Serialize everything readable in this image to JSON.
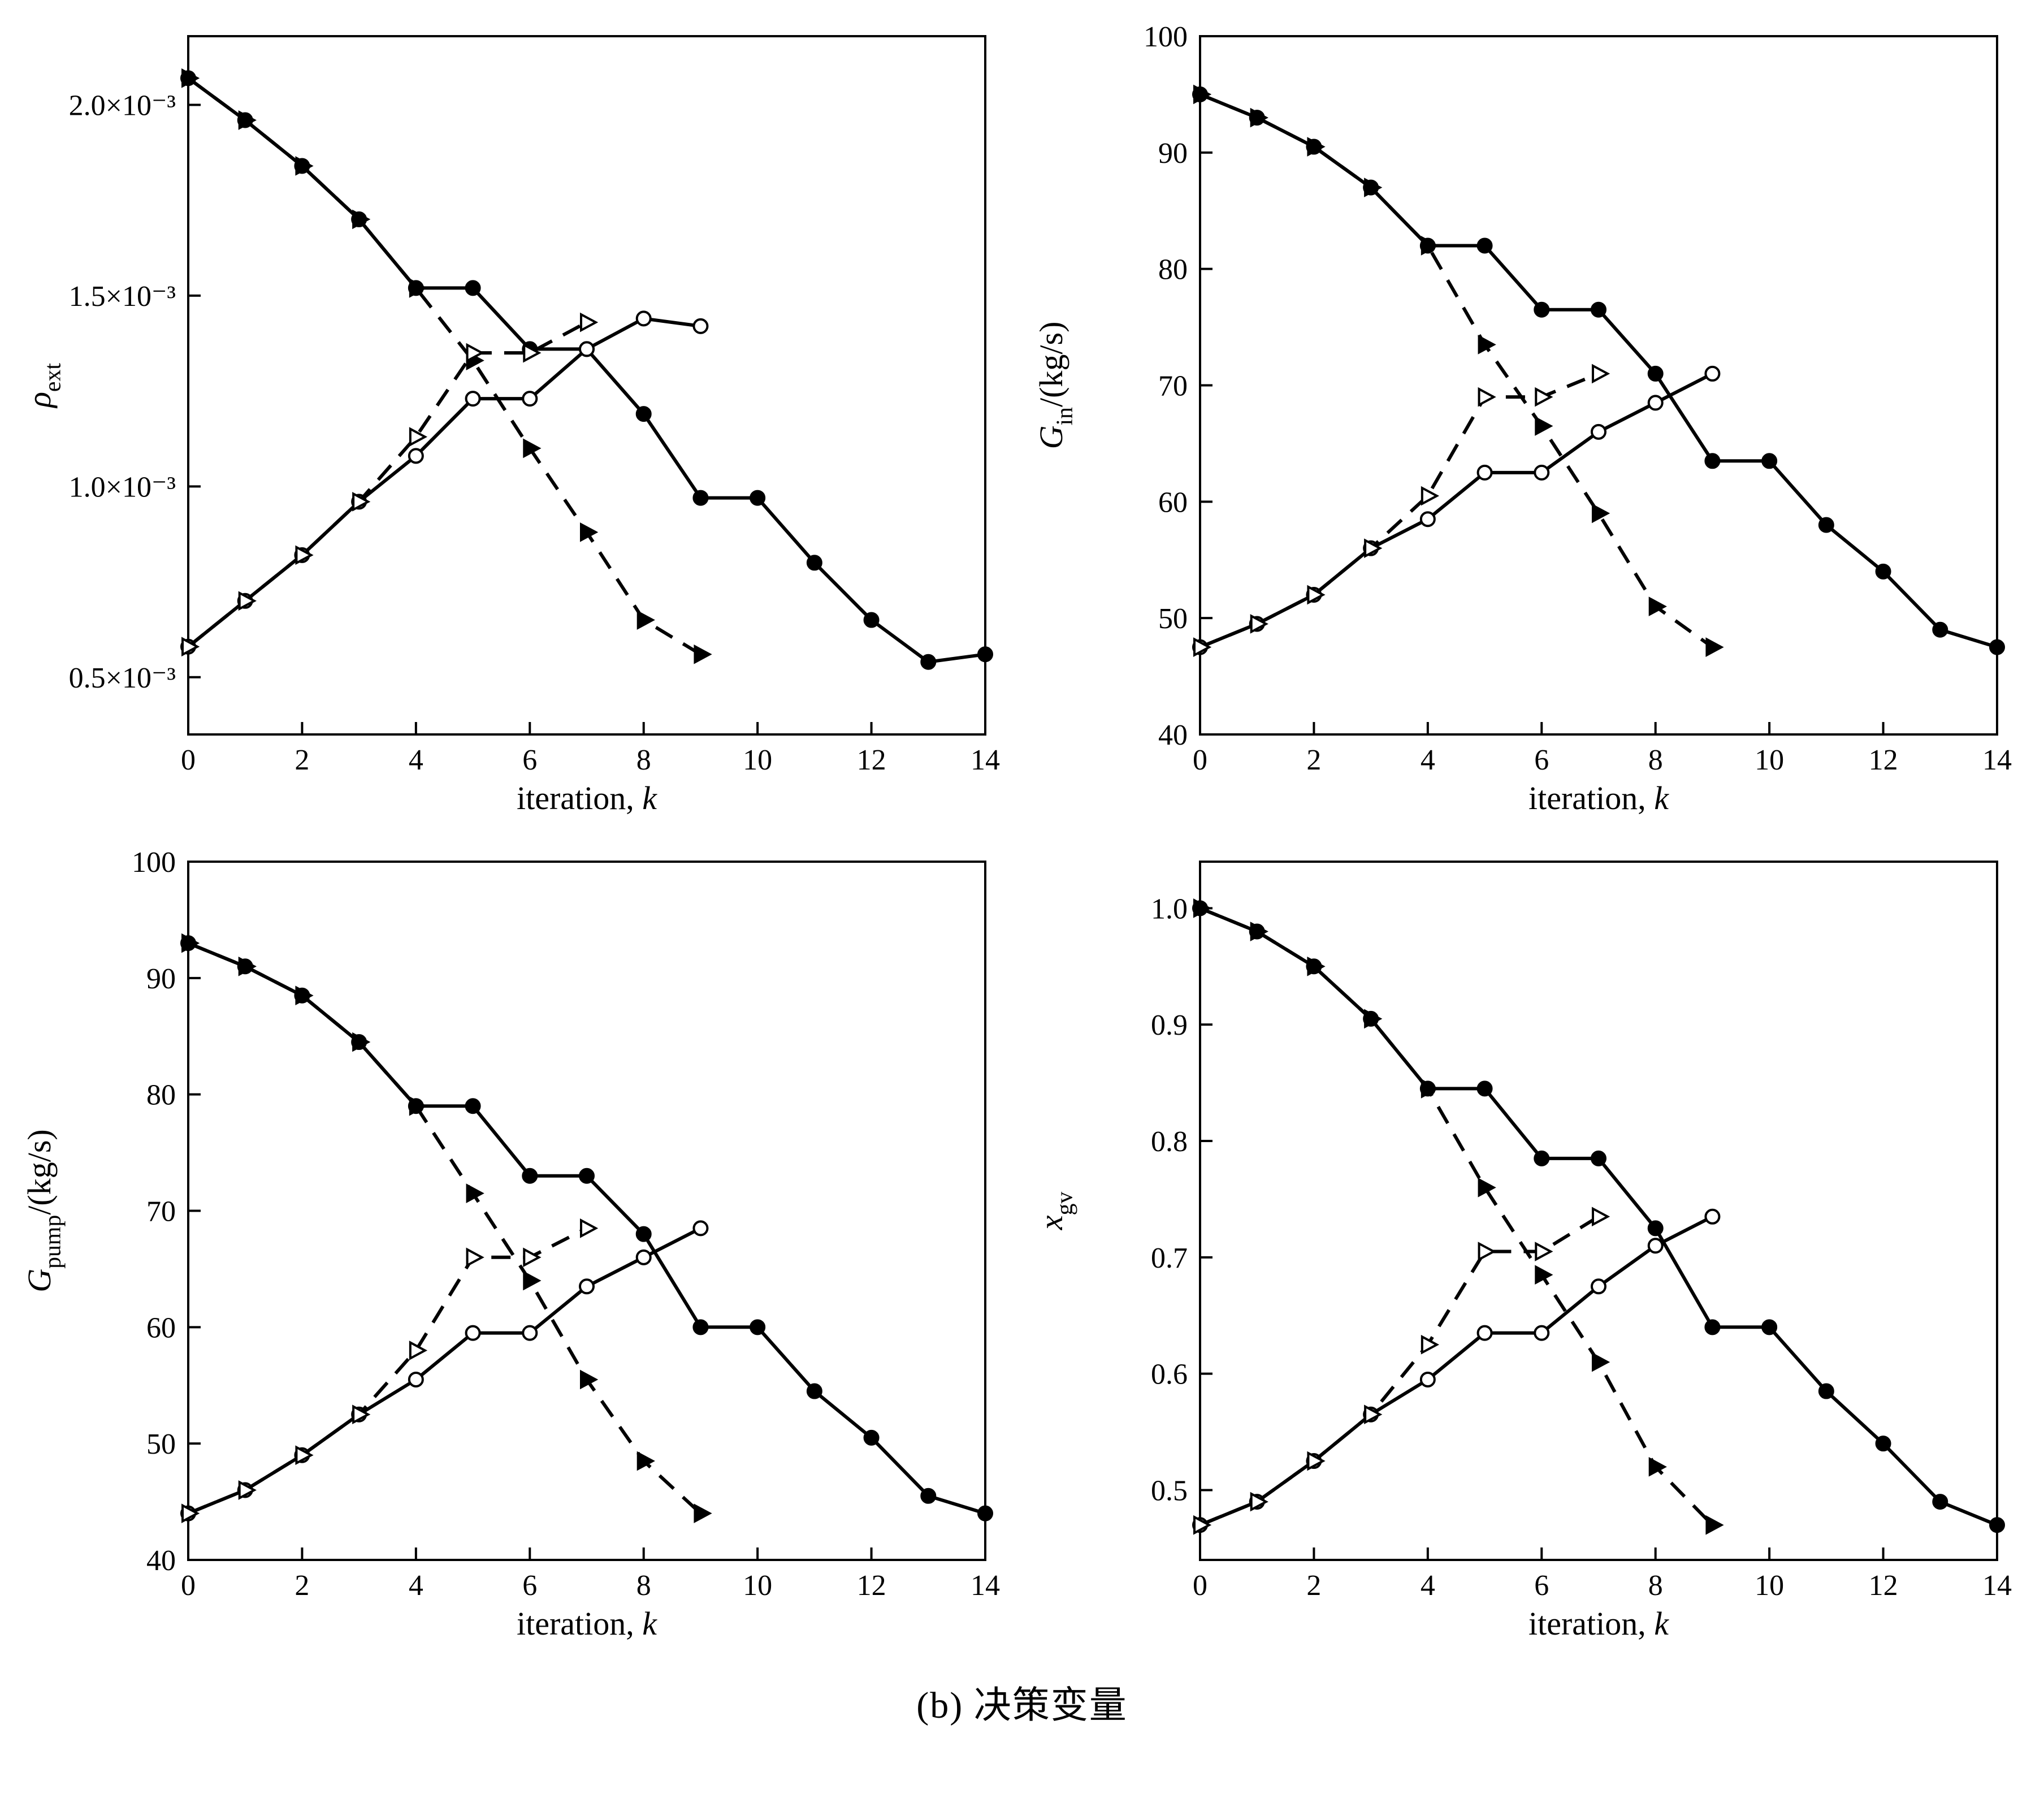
{
  "caption": "(b) 决策变量",
  "chart_data": [
    {
      "type": "line",
      "title": "",
      "name": "rho-ext",
      "xlabel": "iteration, k",
      "ylabel": "rho_ext",
      "xlabel_parts": [
        {
          "text": "iteration, "
        },
        {
          "text": "k",
          "italic": true
        }
      ],
      "ylabel_parts": [
        {
          "text": "ρ",
          "italic": true
        },
        {
          "text": "ext",
          "sub": true
        }
      ],
      "xlim": [
        0,
        14
      ],
      "ylim": [
        0.35,
        2.18
      ],
      "y_unit": "×10⁻³",
      "grid": false,
      "legend": "none",
      "xticks": [
        0,
        2,
        4,
        6,
        8,
        10,
        12,
        14
      ],
      "yticks": [
        0.5,
        1.0,
        1.5,
        2.0
      ],
      "ytick_labels": [
        "0.5×10⁻³",
        "1.0×10⁻³",
        "1.5×10⁻³",
        "2.0×10⁻³"
      ],
      "series": [
        {
          "name": "filled-circle-solid",
          "marker": "circle-filled",
          "dash": false,
          "x": [
            0,
            1,
            2,
            3,
            4,
            5,
            6,
            7,
            8,
            9,
            10,
            11,
            12,
            13,
            14
          ],
          "y": [
            2.07,
            1.96,
            1.84,
            1.7,
            1.52,
            1.52,
            1.36,
            1.36,
            1.19,
            0.97,
            0.97,
            0.8,
            0.65,
            0.54,
            0.56
          ]
        },
        {
          "name": "open-circle-solid",
          "marker": "circle-open",
          "dash": false,
          "x": [
            0,
            1,
            2,
            3,
            4,
            5,
            6,
            7,
            8,
            9
          ],
          "y": [
            0.58,
            0.7,
            0.82,
            0.96,
            1.08,
            1.23,
            1.23,
            1.36,
            1.44,
            1.42
          ]
        },
        {
          "name": "filled-triangle-dashed",
          "marker": "triangle-filled",
          "dash": true,
          "x": [
            0,
            1,
            2,
            3,
            4,
            5,
            6,
            7,
            8,
            9
          ],
          "y": [
            2.07,
            1.96,
            1.84,
            1.7,
            1.52,
            1.33,
            1.1,
            0.88,
            0.65,
            0.56
          ]
        },
        {
          "name": "open-triangle-dashed",
          "marker": "triangle-open",
          "dash": true,
          "x": [
            0,
            1,
            2,
            3,
            4,
            5,
            6,
            7
          ],
          "y": [
            0.58,
            0.7,
            0.82,
            0.96,
            1.13,
            1.35,
            1.35,
            1.43
          ]
        }
      ]
    },
    {
      "type": "line",
      "title": "",
      "name": "g-in",
      "xlabel": "iteration, k",
      "ylabel": "G_in/(kg/s)",
      "xlabel_parts": [
        {
          "text": "iteration, "
        },
        {
          "text": "k",
          "italic": true
        }
      ],
      "ylabel_parts": [
        {
          "text": "G",
          "italic": true
        },
        {
          "text": "in",
          "sub": true
        },
        {
          "text": "/(kg/s)"
        }
      ],
      "xlim": [
        0,
        14
      ],
      "ylim": [
        40,
        100
      ],
      "grid": false,
      "legend": "none",
      "xticks": [
        0,
        2,
        4,
        6,
        8,
        10,
        12,
        14
      ],
      "yticks": [
        40,
        50,
        60,
        70,
        80,
        90,
        100
      ],
      "ytick_labels": [
        "40",
        "50",
        "60",
        "70",
        "80",
        "90",
        "100"
      ],
      "series": [
        {
          "name": "filled-circle-solid",
          "marker": "circle-filled",
          "dash": false,
          "x": [
            0,
            1,
            2,
            3,
            4,
            5,
            6,
            7,
            8,
            9,
            10,
            11,
            12,
            13,
            14
          ],
          "y": [
            95,
            93,
            90.5,
            87,
            82,
            82,
            76.5,
            76.5,
            71,
            63.5,
            63.5,
            58,
            54,
            49,
            47.5
          ]
        },
        {
          "name": "open-circle-solid",
          "marker": "circle-open",
          "dash": false,
          "x": [
            0,
            1,
            2,
            3,
            4,
            5,
            6,
            7,
            8,
            9
          ],
          "y": [
            47.5,
            49.5,
            52,
            56,
            58.5,
            62.5,
            62.5,
            66,
            68.5,
            71
          ]
        },
        {
          "name": "filled-triangle-dashed",
          "marker": "triangle-filled",
          "dash": true,
          "x": [
            0,
            1,
            2,
            3,
            4,
            5,
            6,
            7,
            8,
            9
          ],
          "y": [
            95,
            93,
            90.5,
            87,
            82,
            73.5,
            66.5,
            59,
            51,
            47.5
          ]
        },
        {
          "name": "open-triangle-dashed",
          "marker": "triangle-open",
          "dash": true,
          "x": [
            0,
            1,
            2,
            3,
            4,
            5,
            6,
            7
          ],
          "y": [
            47.5,
            49.5,
            52,
            56,
            60.5,
            69,
            69,
            71
          ]
        }
      ]
    },
    {
      "type": "line",
      "title": "",
      "name": "g-pump",
      "xlabel": "iteration, k",
      "ylabel": "G_pump/(kg/s)",
      "xlabel_parts": [
        {
          "text": "iteration, "
        },
        {
          "text": "k",
          "italic": true
        }
      ],
      "ylabel_parts": [
        {
          "text": "G",
          "italic": true
        },
        {
          "text": "pump",
          "sub": true
        },
        {
          "text": "/(kg/s)"
        }
      ],
      "xlim": [
        0,
        14
      ],
      "ylim": [
        40,
        100
      ],
      "grid": false,
      "legend": "none",
      "xticks": [
        0,
        2,
        4,
        6,
        8,
        10,
        12,
        14
      ],
      "yticks": [
        40,
        50,
        60,
        70,
        80,
        90,
        100
      ],
      "ytick_labels": [
        "40",
        "50",
        "60",
        "70",
        "80",
        "90",
        "100"
      ],
      "series": [
        {
          "name": "filled-circle-solid",
          "marker": "circle-filled",
          "dash": false,
          "x": [
            0,
            1,
            2,
            3,
            4,
            5,
            6,
            7,
            8,
            9,
            10,
            11,
            12,
            13,
            14
          ],
          "y": [
            93,
            91,
            88.5,
            84.5,
            79,
            79,
            73,
            73,
            68,
            60,
            60,
            54.5,
            50.5,
            45.5,
            44
          ]
        },
        {
          "name": "open-circle-solid",
          "marker": "circle-open",
          "dash": false,
          "x": [
            0,
            1,
            2,
            3,
            4,
            5,
            6,
            7,
            8,
            9
          ],
          "y": [
            44,
            46,
            49,
            52.5,
            55.5,
            59.5,
            59.5,
            63.5,
            66,
            68.5
          ]
        },
        {
          "name": "filled-triangle-dashed",
          "marker": "triangle-filled",
          "dash": true,
          "x": [
            0,
            1,
            2,
            3,
            4,
            5,
            6,
            7,
            8,
            9
          ],
          "y": [
            93,
            91,
            88.5,
            84.5,
            79,
            71.5,
            64,
            55.5,
            48.5,
            44
          ]
        },
        {
          "name": "open-triangle-dashed",
          "marker": "triangle-open",
          "dash": true,
          "x": [
            0,
            1,
            2,
            3,
            4,
            5,
            6,
            7
          ],
          "y": [
            44,
            46,
            49,
            52.5,
            58,
            66,
            66,
            68.5
          ]
        }
      ]
    },
    {
      "type": "line",
      "title": "",
      "name": "x-gv",
      "xlabel": "iteration, k",
      "ylabel": "x_gv",
      "xlabel_parts": [
        {
          "text": "iteration, "
        },
        {
          "text": "k",
          "italic": true
        }
      ],
      "ylabel_parts": [
        {
          "text": "x",
          "italic": true
        },
        {
          "text": "gv",
          "sub": true
        }
      ],
      "xlim": [
        0,
        14
      ],
      "ylim": [
        0.44,
        1.04
      ],
      "grid": false,
      "legend": "none",
      "xticks": [
        0,
        2,
        4,
        6,
        8,
        10,
        12,
        14
      ],
      "yticks": [
        0.5,
        0.6,
        0.7,
        0.8,
        0.9,
        1.0
      ],
      "ytick_labels": [
        "0.5",
        "0.6",
        "0.7",
        "0.8",
        "0.9",
        "1.0"
      ],
      "series": [
        {
          "name": "filled-circle-solid",
          "marker": "circle-filled",
          "dash": false,
          "x": [
            0,
            1,
            2,
            3,
            4,
            5,
            6,
            7,
            8,
            9,
            10,
            11,
            12,
            13,
            14
          ],
          "y": [
            1.0,
            0.98,
            0.95,
            0.905,
            0.845,
            0.845,
            0.785,
            0.785,
            0.725,
            0.64,
            0.64,
            0.585,
            0.54,
            0.49,
            0.47
          ]
        },
        {
          "name": "open-circle-solid",
          "marker": "circle-open",
          "dash": false,
          "x": [
            0,
            1,
            2,
            3,
            4,
            5,
            6,
            7,
            8,
            9
          ],
          "y": [
            0.47,
            0.49,
            0.525,
            0.565,
            0.595,
            0.635,
            0.635,
            0.675,
            0.71,
            0.735
          ]
        },
        {
          "name": "filled-triangle-dashed",
          "marker": "triangle-filled",
          "dash": true,
          "x": [
            0,
            1,
            2,
            3,
            4,
            5,
            6,
            7,
            8,
            9
          ],
          "y": [
            1.0,
            0.98,
            0.95,
            0.905,
            0.845,
            0.76,
            0.685,
            0.61,
            0.52,
            0.47
          ]
        },
        {
          "name": "open-triangle-dashed",
          "marker": "triangle-open",
          "dash": true,
          "x": [
            0,
            1,
            2,
            3,
            4,
            5,
            6,
            7
          ],
          "y": [
            0.47,
            0.49,
            0.525,
            0.565,
            0.625,
            0.705,
            0.705,
            0.735
          ]
        }
      ]
    }
  ]
}
